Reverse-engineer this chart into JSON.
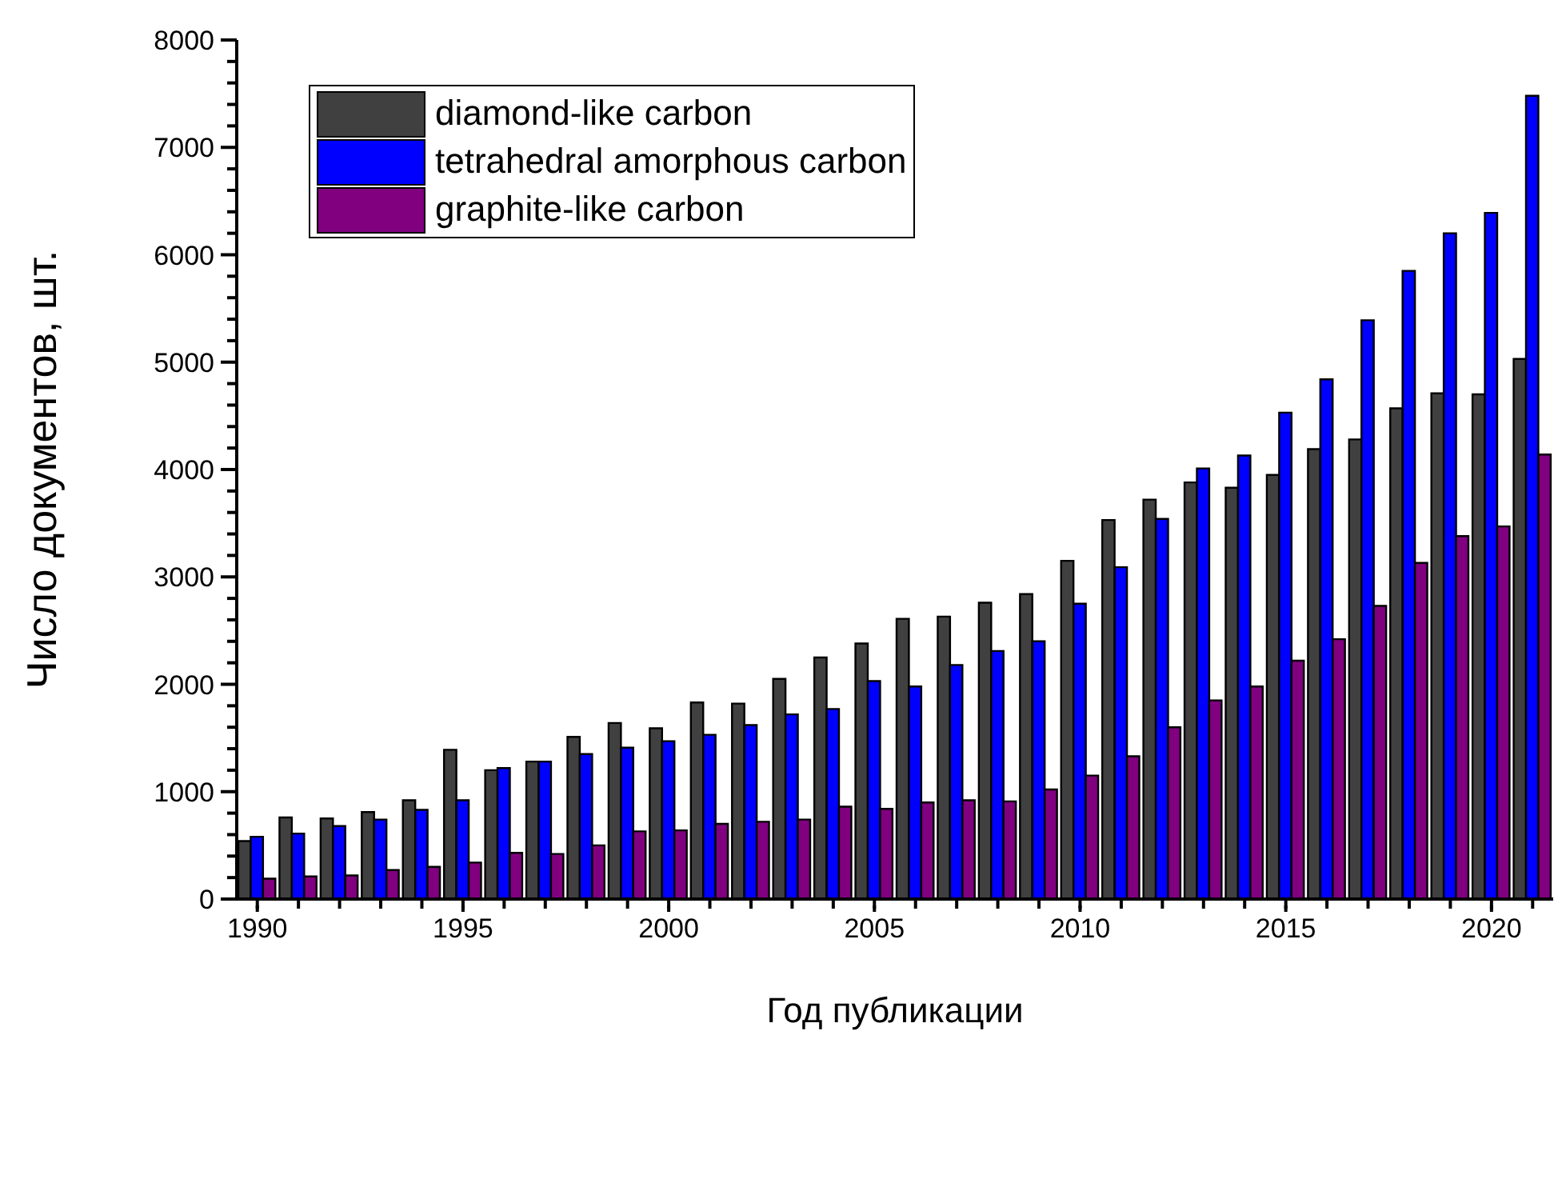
{
  "chart_data": {
    "type": "bar",
    "xlabel": "Год публикации",
    "ylabel": "Число документов, шт.",
    "x": [
      1990,
      1991,
      1992,
      1993,
      1994,
      1995,
      1996,
      1997,
      1998,
      1999,
      2000,
      2001,
      2002,
      2003,
      2004,
      2005,
      2006,
      2007,
      2008,
      2009,
      2010,
      2011,
      2012,
      2013,
      2014,
      2015,
      2016,
      2017,
      2018,
      2019,
      2020,
      2021
    ],
    "series": [
      {
        "name": "diamond-like carbon",
        "color": "#404040",
        "values": [
          540,
          760,
          750,
          810,
          920,
          1390,
          1200,
          1280,
          1510,
          1640,
          1590,
          1830,
          1820,
          2050,
          2250,
          2380,
          2610,
          2630,
          2760,
          2840,
          3150,
          3530,
          3720,
          3880,
          3830,
          3950,
          4190,
          4280,
          4570,
          4710,
          4700,
          5030
        ]
      },
      {
        "name": "tetrahedral amorphous carbon",
        "color": "#0000ff",
        "values": [
          580,
          610,
          680,
          740,
          830,
          920,
          1220,
          1280,
          1350,
          1410,
          1470,
          1530,
          1620,
          1720,
          1770,
          2030,
          1980,
          2180,
          2310,
          2400,
          2750,
          3090,
          3540,
          4010,
          4130,
          4530,
          4840,
          5390,
          5850,
          6200,
          6390,
          7480
        ]
      },
      {
        "name": "graphite-like carbon",
        "color": "#800080",
        "values": [
          190,
          210,
          220,
          270,
          300,
          340,
          430,
          420,
          500,
          630,
          640,
          700,
          720,
          740,
          860,
          840,
          900,
          920,
          910,
          1020,
          1150,
          1330,
          1600,
          1850,
          1980,
          2220,
          2420,
          2730,
          3130,
          3380,
          3470,
          4140
        ]
      }
    ],
    "xlim": [
      1989.5,
      2021.5
    ],
    "xticks": [
      1990,
      {
        "value": 1991,
        "label": null
      },
      {
        "value": 1992,
        "label": null
      },
      {
        "value": 1993,
        "label": null
      },
      {
        "value": 1994,
        "label": null
      },
      1995,
      {
        "value": 1996,
        "label": null
      },
      {
        "value": 1997,
        "label": null
      },
      {
        "value": 1998,
        "label": null
      },
      {
        "value": 1999,
        "label": null
      },
      2000,
      {
        "value": 2001,
        "label": null
      },
      {
        "value": 2002,
        "label": null
      },
      {
        "value": 2003,
        "label": null
      },
      {
        "value": 2004,
        "label": null
      },
      2005,
      {
        "value": 2006,
        "label": null
      },
      {
        "value": 2007,
        "label": null
      },
      {
        "value": 2008,
        "label": null
      },
      {
        "value": 2009,
        "label": null
      },
      2010,
      {
        "value": 2011,
        "label": null
      },
      {
        "value": 2012,
        "label": null
      },
      {
        "value": 2013,
        "label": null
      },
      {
        "value": 2014,
        "label": null
      },
      2015,
      {
        "value": 2016,
        "label": null
      },
      {
        "value": 2017,
        "label": null
      },
      {
        "value": 2018,
        "label": null
      },
      {
        "value": 2019,
        "label": null
      },
      2020,
      {
        "value": 2021,
        "label": null
      }
    ],
    "ylim": [
      0,
      8000
    ],
    "yticks": [
      0,
      {
        "value": 200,
        "label": null
      },
      {
        "value": 400,
        "label": null
      },
      {
        "value": 600,
        "label": null
      },
      {
        "value": 800,
        "label": null
      },
      1000,
      {
        "value": 1200,
        "label": null
      },
      {
        "value": 1400,
        "label": null
      },
      {
        "value": 1600,
        "label": null
      },
      {
        "value": 1800,
        "label": null
      },
      2000,
      {
        "value": 2200,
        "label": null
      },
      {
        "value": 2400,
        "label": null
      },
      {
        "value": 2600,
        "label": null
      },
      {
        "value": 2800,
        "label": null
      },
      3000,
      {
        "value": 3200,
        "label": null
      },
      {
        "value": 3400,
        "label": null
      },
      {
        "value": 3600,
        "label": null
      },
      {
        "value": 3800,
        "label": null
      },
      4000,
      {
        "value": 4200,
        "label": null
      },
      {
        "value": 4400,
        "label": null
      },
      {
        "value": 4600,
        "label": null
      },
      {
        "value": 4800,
        "label": null
      },
      5000,
      {
        "value": 5200,
        "label": null
      },
      {
        "value": 5400,
        "label": null
      },
      {
        "value": 5600,
        "label": null
      },
      {
        "value": 5800,
        "label": null
      },
      6000,
      {
        "value": 6200,
        "label": null
      },
      {
        "value": 6400,
        "label": null
      },
      {
        "value": 6600,
        "label": null
      },
      {
        "value": 6800,
        "label": null
      },
      7000,
      {
        "value": 7200,
        "label": null
      },
      {
        "value": 7400,
        "label": null
      },
      {
        "value": 7600,
        "label": null
      },
      {
        "value": 7800,
        "label": null
      },
      8000
    ],
    "legend": "top left"
  }
}
